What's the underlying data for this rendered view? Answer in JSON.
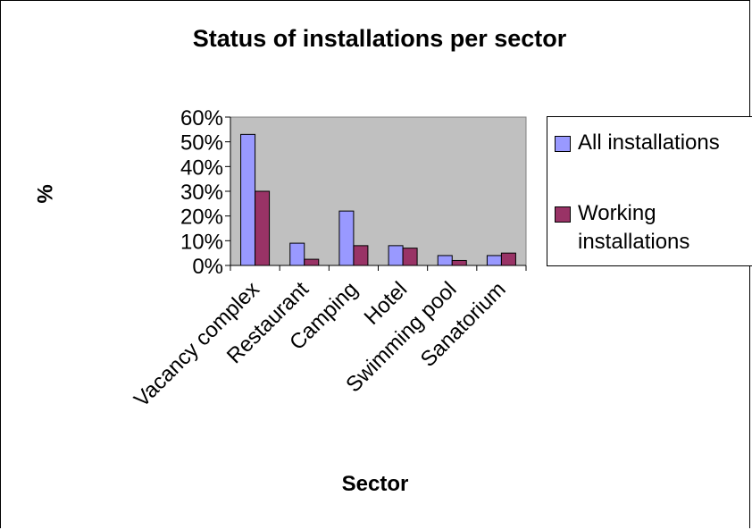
{
  "chart_data": {
    "type": "bar",
    "title": "Status of installations per sector",
    "xlabel": "Sector",
    "ylabel": "%",
    "categories": [
      "Vacancy complex",
      "Restaurant",
      "Camping",
      "Hotel",
      "Swimming pool",
      "Sanatorium"
    ],
    "series": [
      {
        "name": "All installations",
        "values": [
          53,
          9,
          22,
          8,
          4,
          4
        ],
        "color": "#9999ff"
      },
      {
        "name": "Working installations",
        "values": [
          30,
          2.5,
          8,
          7,
          2,
          5
        ],
        "color": "#993366"
      }
    ],
    "yticks": [
      "0%",
      "10%",
      "20%",
      "30%",
      "40%",
      "50%",
      "60%"
    ],
    "ylim": [
      0,
      60
    ],
    "plot_background": "#c0c0c0",
    "grid": false,
    "legend_position": "right"
  }
}
